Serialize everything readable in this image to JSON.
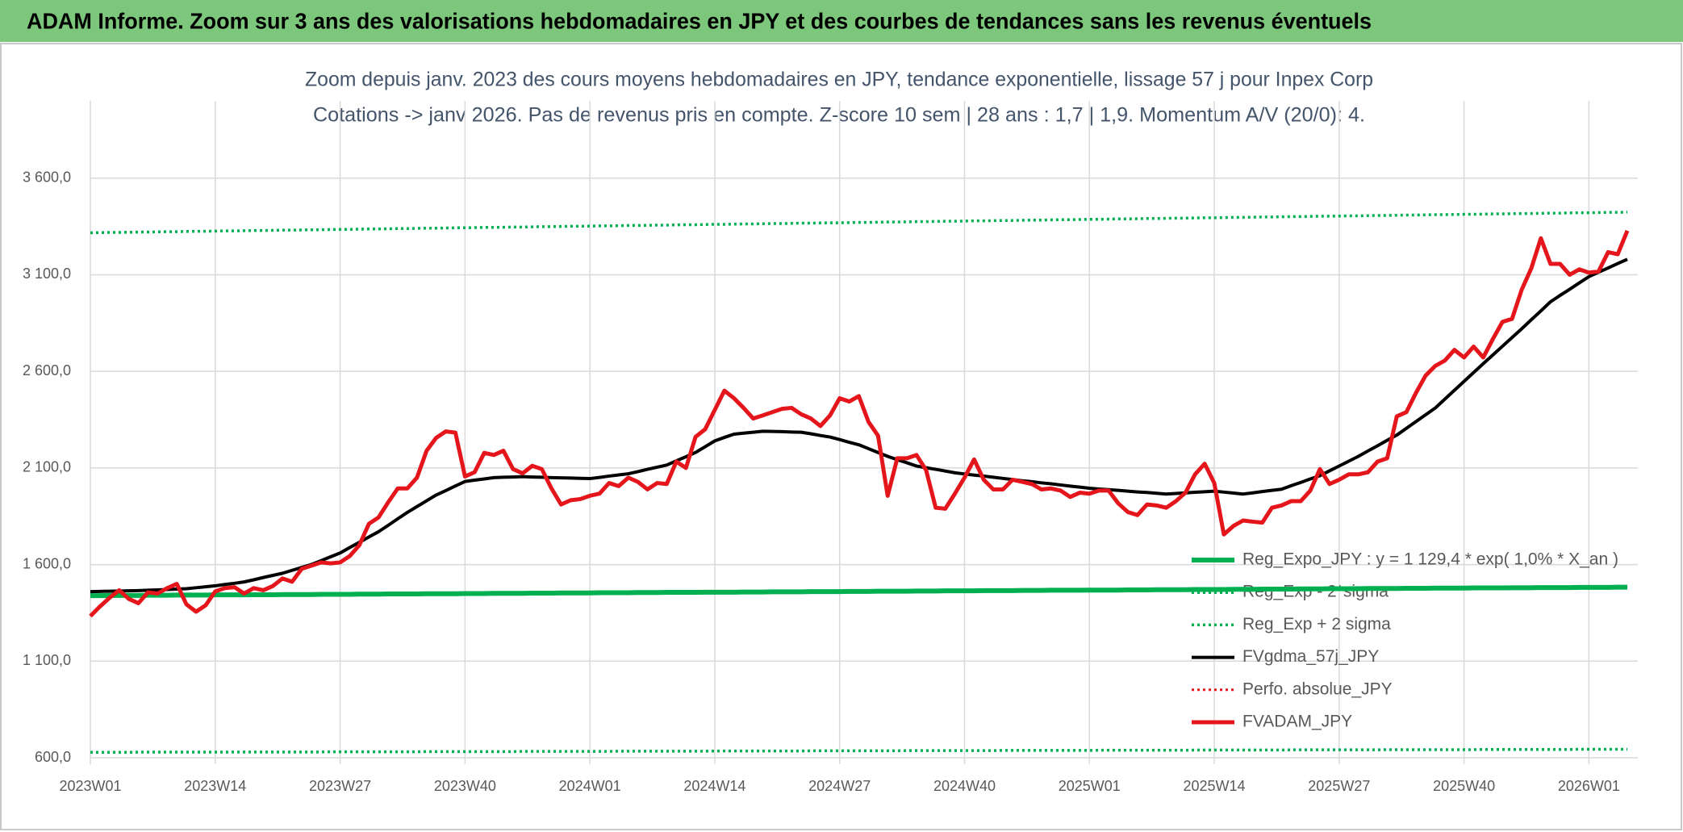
{
  "page_title": "ADAM Informe. Zoom sur 3 ans des valorisations hebdomadaires en JPY et des courbes de tendances sans les revenus éventuels",
  "chart_data": {
    "type": "line",
    "title": "Zoom depuis janv. 2023 des cours moyens hebdomadaires en JPY, tendance exponentielle, lissage 57 j pour Inpex Corp",
    "subtitle": "Cotations -> janv 2026. Pas de revenus pris en compte. Z-score 10 sem | 28 ans : 1,7 | 1,9. Momentum A/V (20/0): 4.",
    "categories": [
      "2023W01",
      null,
      null,
      null,
      null,
      null,
      null,
      null,
      null,
      null,
      null,
      null,
      null,
      "2023W14",
      null,
      null,
      null,
      null,
      null,
      null,
      null,
      null,
      null,
      null,
      null,
      null,
      "2023W27",
      null,
      null,
      null,
      null,
      null,
      null,
      null,
      null,
      null,
      null,
      null,
      null,
      "2023W40",
      null,
      null,
      null,
      null,
      null,
      null,
      null,
      null,
      null,
      null,
      null,
      null,
      "2024W01",
      null,
      null,
      null,
      null,
      null,
      null,
      null,
      null,
      null,
      null,
      null,
      null,
      "2024W14",
      null,
      null,
      null,
      null,
      null,
      null,
      null,
      null,
      null,
      null,
      null,
      null,
      "2024W27",
      null,
      null,
      null,
      null,
      null,
      null,
      null,
      null,
      null,
      null,
      null,
      null,
      "2024W40",
      null,
      null,
      null,
      null,
      null,
      null,
      null,
      null,
      null,
      null,
      null,
      null,
      "2025W01",
      null,
      null,
      null,
      null,
      null,
      null,
      null,
      null,
      null,
      null,
      null,
      null,
      "2025W14",
      null,
      null,
      null,
      null,
      null,
      null,
      null,
      null,
      null,
      null,
      null,
      null,
      "2025W27",
      null,
      null,
      null,
      null,
      null,
      null,
      null,
      null,
      null,
      null,
      null,
      null,
      "2025W40",
      null,
      null,
      null,
      null,
      null,
      null,
      null,
      null,
      null,
      null,
      null,
      null,
      "2026W01",
      null,
      null,
      null,
      null
    ],
    "ylim": [
      600,
      4000
    ],
    "yticks": [
      {
        "value": 600,
        "label": "600,0"
      },
      {
        "value": 1100,
        "label": "1 100,0"
      },
      {
        "value": 1600,
        "label": "1 600,0"
      },
      {
        "value": 2100,
        "label": "2 100,0"
      },
      {
        "value": 2600,
        "label": "2 600,0"
      },
      {
        "value": 3100,
        "label": "3 100,0"
      },
      {
        "value": 3600,
        "label": "3 600,0"
      }
    ],
    "grid": true,
    "legend": "right",
    "series": [
      {
        "name": "Reg_Expo_JPY : y = 1 129,4 * exp( 1,0% *  X_an )",
        "color": "#00b050",
        "style": "solid",
        "width": 6,
        "values": [
          1439,
          1439,
          1440,
          1440,
          1440,
          1440,
          1441,
          1441,
          1441,
          1442,
          1442,
          1442,
          1442,
          1443,
          1443,
          1443,
          1443,
          1444,
          1444,
          1444,
          1445,
          1445,
          1445,
          1445,
          1446,
          1446,
          1446,
          1446,
          1447,
          1447,
          1447,
          1448,
          1448,
          1448,
          1448,
          1449,
          1449,
          1449,
          1449,
          1450,
          1450,
          1450,
          1451,
          1451,
          1451,
          1451,
          1452,
          1452,
          1452,
          1453,
          1453,
          1453,
          1453,
          1454,
          1454,
          1454,
          1454,
          1455,
          1455,
          1455,
          1456,
          1456,
          1456,
          1456,
          1457,
          1457,
          1457,
          1457,
          1458,
          1458,
          1458,
          1459,
          1459,
          1459,
          1459,
          1460,
          1460,
          1460,
          1460,
          1461,
          1461,
          1461,
          1462,
          1462,
          1462,
          1462,
          1463,
          1463,
          1463,
          1464,
          1464,
          1464,
          1464,
          1465,
          1465,
          1465,
          1465,
          1466,
          1466,
          1466,
          1467,
          1467,
          1467,
          1467,
          1468,
          1468,
          1468,
          1468,
          1469,
          1469,
          1469,
          1470,
          1470,
          1470,
          1470,
          1471,
          1471,
          1471,
          1471,
          1472,
          1472,
          1472,
          1473,
          1473,
          1473,
          1473,
          1474,
          1474,
          1474,
          1475,
          1475,
          1475,
          1475,
          1476,
          1476,
          1476,
          1476,
          1477,
          1477,
          1477,
          1478,
          1478,
          1478,
          1478,
          1479,
          1479,
          1479,
          1479,
          1480,
          1480,
          1480,
          1481,
          1481,
          1481,
          1481,
          1482,
          1482,
          1482,
          1482,
          1483,
          1483
        ]
      },
      {
        "name": "Reg_Exp - 2*sigma",
        "color": "#00b050",
        "style": "dotted",
        "width": 3.5,
        "values": [
          628,
          628,
          628,
          628,
          628,
          629,
          629,
          629,
          629,
          629,
          629,
          629,
          629,
          629,
          629,
          630,
          630,
          630,
          630,
          630,
          630,
          630,
          630,
          630,
          630,
          631,
          631,
          631,
          631,
          631,
          631,
          631,
          631,
          631,
          631,
          632,
          632,
          632,
          632,
          632,
          632,
          632,
          632,
          632,
          632,
          633,
          633,
          633,
          633,
          633,
          633,
          633,
          633,
          633,
          633,
          634,
          634,
          634,
          634,
          634,
          634,
          634,
          634,
          634,
          634,
          635,
          635,
          635,
          635,
          635,
          635,
          635,
          635,
          635,
          635,
          636,
          636,
          636,
          636,
          636,
          636,
          636,
          636,
          636,
          636,
          637,
          637,
          637,
          637,
          637,
          637,
          637,
          637,
          637,
          637,
          638,
          638,
          638,
          638,
          638,
          638,
          638,
          638,
          638,
          638,
          639,
          639,
          639,
          639,
          639,
          639,
          639,
          639,
          639,
          639,
          640,
          640,
          640,
          640,
          640,
          640,
          640,
          640,
          640,
          640,
          641,
          641,
          641,
          641,
          641,
          641,
          641,
          641,
          641,
          641,
          642,
          642,
          642,
          642,
          642,
          642,
          642,
          642,
          642,
          642,
          643,
          643,
          643,
          643,
          643,
          643,
          643,
          643,
          643,
          643,
          644,
          644,
          644,
          644,
          644,
          644
        ]
      },
      {
        "name": "Reg_Exp + 2 sigma",
        "color": "#00b050",
        "style": "dotted",
        "width": 3.5,
        "values": [
          3317,
          3318,
          3319,
          3319,
          3320,
          3321,
          3321,
          3322,
          3323,
          3323,
          3324,
          3325,
          3325,
          3326,
          3327,
          3327,
          3328,
          3329,
          3329,
          3330,
          3331,
          3331,
          3332,
          3333,
          3333,
          3334,
          3335,
          3335,
          3336,
          3337,
          3337,
          3338,
          3339,
          3339,
          3340,
          3341,
          3341,
          3342,
          3343,
          3343,
          3344,
          3345,
          3345,
          3346,
          3347,
          3347,
          3348,
          3349,
          3349,
          3350,
          3351,
          3351,
          3352,
          3353,
          3353,
          3354,
          3355,
          3355,
          3356,
          3357,
          3357,
          3358,
          3359,
          3359,
          3360,
          3361,
          3361,
          3362,
          3363,
          3363,
          3364,
          3365,
          3365,
          3366,
          3367,
          3367,
          3368,
          3369,
          3369,
          3370,
          3371,
          3371,
          3372,
          3373,
          3373,
          3374,
          3375,
          3375,
          3376,
          3377,
          3377,
          3378,
          3379,
          3379,
          3380,
          3381,
          3381,
          3382,
          3383,
          3383,
          3384,
          3385,
          3385,
          3386,
          3387,
          3387,
          3388,
          3389,
          3389,
          3390,
          3391,
          3391,
          3392,
          3393,
          3393,
          3394,
          3395,
          3395,
          3396,
          3397,
          3397,
          3398,
          3399,
          3399,
          3400,
          3401,
          3401,
          3402,
          3403,
          3403,
          3404,
          3405,
          3405,
          3406,
          3407,
          3407,
          3408,
          3409,
          3409,
          3410,
          3411,
          3411,
          3412,
          3413,
          3413,
          3414,
          3415,
          3415,
          3416,
          3417,
          3417,
          3418,
          3419,
          3419,
          3420,
          3421,
          3421,
          3422,
          3423,
          3423,
          3424
        ]
      },
      {
        "name": "FVgdma_57j_JPY",
        "color": "#000000",
        "style": "solid",
        "width": 4,
        "values": [
          1460,
          1461,
          1462,
          1463,
          1464,
          1465,
          1467,
          1469,
          1471,
          1473,
          1475,
          1480,
          1485,
          1490,
          1497,
          1503,
          1510,
          1521,
          1533,
          1544,
          1555,
          1570,
          1585,
          1600,
          1620,
          1640,
          1660,
          1688,
          1715,
          1743,
          1770,
          1803,
          1837,
          1870,
          1900,
          1930,
          1960,
          1983,
          2007,
          2030,
          2037,
          2043,
          2050,
          2052,
          2053,
          2055,
          2053,
          2052,
          2050,
          2049,
          2048,
          2046,
          2045,
          2051,
          2058,
          2064,
          2070,
          2081,
          2093,
          2104,
          2115,
          2137,
          2158,
          2180,
          2210,
          2240,
          2258,
          2275,
          2280,
          2285,
          2290,
          2289,
          2288,
          2286,
          2285,
          2277,
          2268,
          2260,
          2247,
          2233,
          2220,
          2200,
          2180,
          2160,
          2143,
          2127,
          2110,
          2101,
          2093,
          2084,
          2075,
          2069,
          2063,
          2058,
          2052,
          2046,
          2040,
          2034,
          2029,
          2023,
          2018,
          2012,
          2006,
          2001,
          1995,
          1991,
          1988,
          1984,
          1980,
          1976,
          1973,
          1969,
          1965,
          1968,
          1971,
          1974,
          1977,
          1980,
          1975,
          1970,
          1965,
          1971,
          1978,
          1984,
          1990,
          2008,
          2025,
          2043,
          2060,
          2085,
          2110,
          2135,
          2160,
          2188,
          2215,
          2243,
          2270,
          2305,
          2340,
          2375,
          2410,
          2456,
          2502,
          2548,
          2594,
          2640,
          2685,
          2730,
          2775,
          2820,
          2867,
          2913,
          2960,
          2993,
          3025,
          3058,
          3090,
          3113,
          3135,
          3158,
          3180
        ]
      },
      {
        "name": "Perfo. absolue_JPY",
        "color": "#e4151b",
        "style": "dotted",
        "width": 3
      },
      {
        "name": "FVADAM_JPY",
        "color": "#e4151b",
        "style": "solid",
        "width": 5,
        "values": [
          1333,
          1383,
          1428,
          1467,
          1422,
          1400,
          1456,
          1450,
          1478,
          1500,
          1394,
          1356,
          1389,
          1461,
          1478,
          1483,
          1450,
          1478,
          1467,
          1489,
          1528,
          1511,
          1578,
          1594,
          1611,
          1606,
          1611,
          1644,
          1700,
          1811,
          1844,
          1922,
          1994,
          1994,
          2050,
          2189,
          2256,
          2289,
          2283,
          2056,
          2078,
          2178,
          2167,
          2189,
          2094,
          2072,
          2111,
          2094,
          1994,
          1911,
          1933,
          1939,
          1956,
          1967,
          2022,
          2006,
          2050,
          2028,
          1989,
          2022,
          2017,
          2133,
          2100,
          2261,
          2300,
          2400,
          2500,
          2461,
          2411,
          2356,
          2372,
          2389,
          2406,
          2411,
          2378,
          2356,
          2317,
          2372,
          2461,
          2444,
          2472,
          2339,
          2267,
          1956,
          2150,
          2150,
          2167,
          2089,
          1894,
          1889,
          1967,
          2050,
          2144,
          2039,
          1989,
          1989,
          2039,
          2028,
          2017,
          1989,
          1994,
          1983,
          1950,
          1972,
          1967,
          1983,
          1983,
          1917,
          1872,
          1856,
          1911,
          1906,
          1894,
          1928,
          1972,
          2067,
          2122,
          2022,
          1756,
          1800,
          1828,
          1822,
          1817,
          1894,
          1906,
          1928,
          1928,
          1983,
          2094,
          2017,
          2039,
          2067,
          2067,
          2078,
          2133,
          2150,
          2367,
          2389,
          2489,
          2578,
          2628,
          2656,
          2711,
          2672,
          2728,
          2672,
          2767,
          2856,
          2872,
          3022,
          3133,
          3289,
          3156,
          3156,
          3100,
          3128,
          3111,
          3117,
          3217,
          3206,
          3328
        ]
      }
    ]
  }
}
